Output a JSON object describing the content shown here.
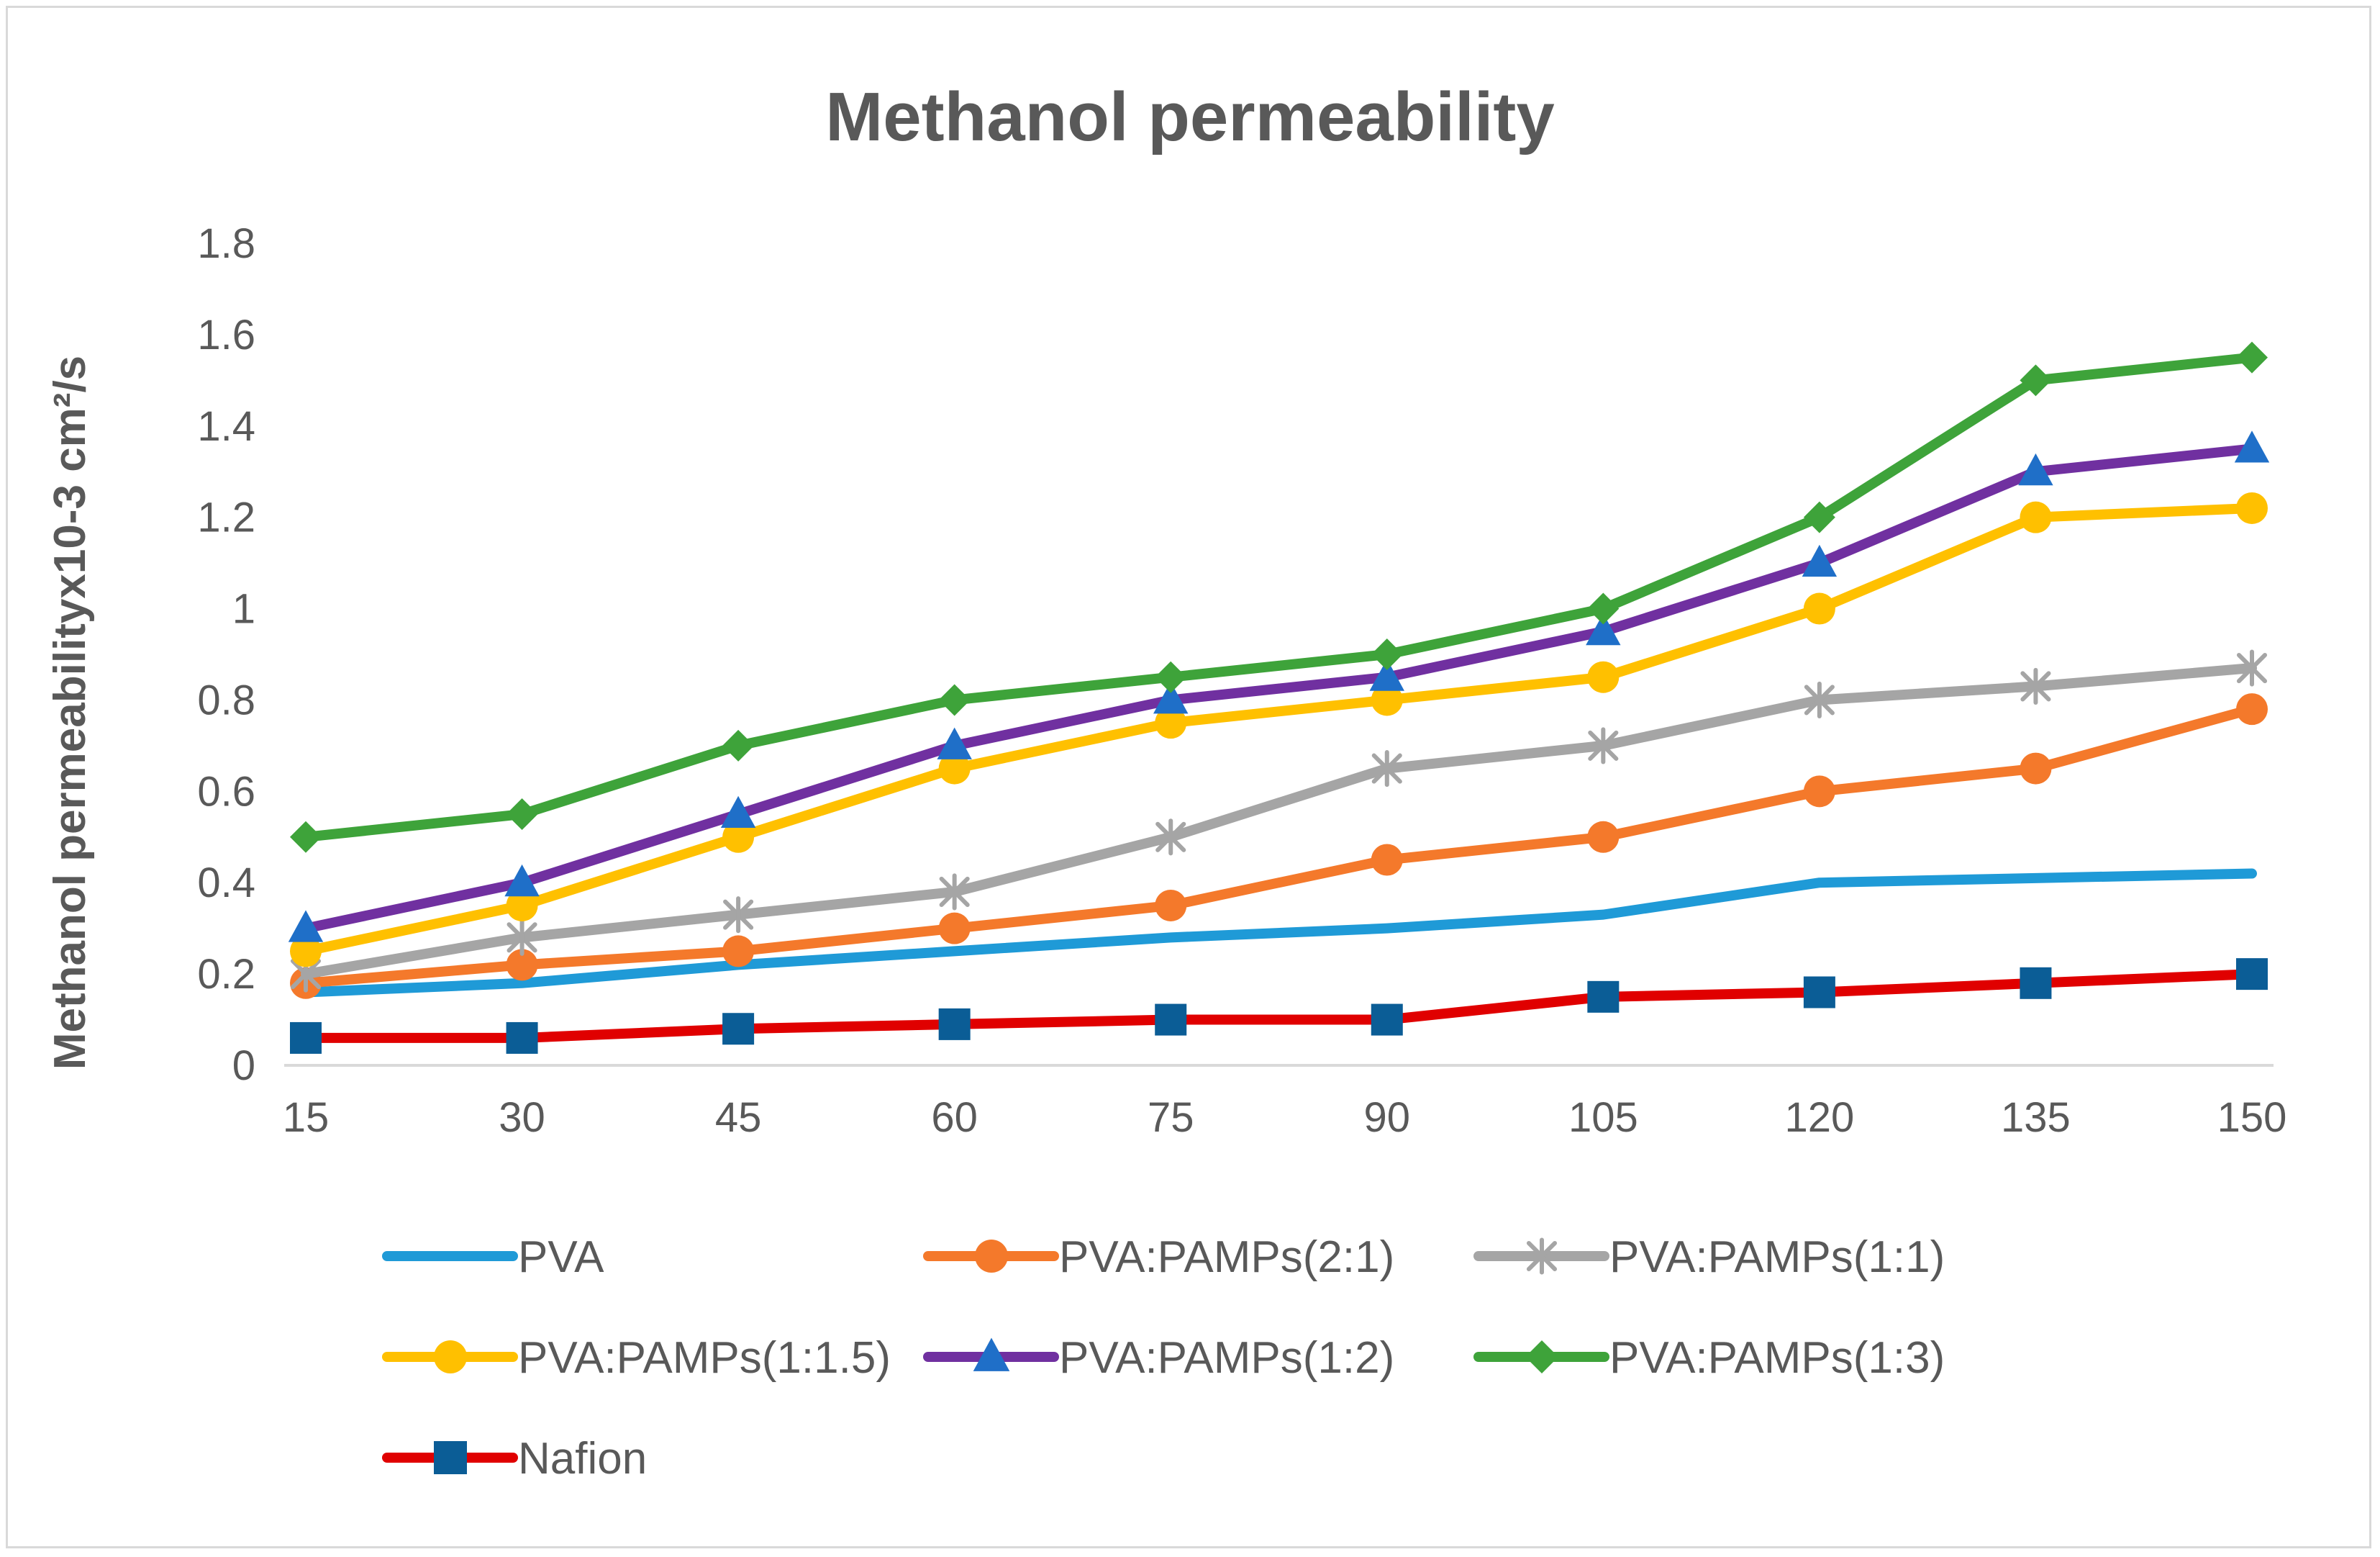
{
  "chart_data": {
    "type": "line",
    "title": "Methanol permeability",
    "xlabel": "",
    "ylabel": "Methanol permeabilityx10-3 cm²/s",
    "categories": [
      "15",
      "30",
      "45",
      "60",
      "75",
      "90",
      "105",
      "120",
      "135",
      "150"
    ],
    "y_tick_labels": [
      "0",
      "0.2",
      "0.4",
      "0.6",
      "0.8",
      "1",
      "1.2",
      "1.4",
      "1.6",
      "1.8"
    ],
    "ylim": [
      0,
      1.8
    ],
    "grid": false,
    "legend_position": "bottom",
    "series": [
      {
        "name": "PVA",
        "color": "#1f9ad7",
        "marker": "none",
        "values": [
          0.16,
          0.18,
          0.22,
          0.25,
          0.28,
          0.3,
          0.33,
          0.4,
          0.41,
          0.42
        ]
      },
      {
        "name": "PVA:PAMPs(2:1)",
        "color": "#f4792b",
        "marker": "circle",
        "values": [
          0.18,
          0.22,
          0.25,
          0.3,
          0.35,
          0.45,
          0.5,
          0.6,
          0.65,
          0.78
        ]
      },
      {
        "name": "PVA:PAMPs(1:1)",
        "color": "#a5a5a5",
        "marker": "star",
        "values": [
          0.2,
          0.28,
          0.33,
          0.38,
          0.5,
          0.65,
          0.7,
          0.8,
          0.83,
          0.87
        ]
      },
      {
        "name": "PVA:PAMPs(1:1.5)",
        "color": "#ffc000",
        "marker": "circle",
        "values": [
          0.25,
          0.35,
          0.5,
          0.65,
          0.75,
          0.8,
          0.85,
          1.0,
          1.2,
          1.22
        ]
      },
      {
        "name": "PVA:PAMPs(1:2)",
        "color": "#7030a0",
        "marker": "triangle",
        "marker_color": "#1f6fc8",
        "values": [
          0.3,
          0.4,
          0.55,
          0.7,
          0.8,
          0.85,
          0.95,
          1.1,
          1.3,
          1.35
        ]
      },
      {
        "name": "PVA:PAMPs(1:3)",
        "color": "#3ea33a",
        "marker": "diamond",
        "values": [
          0.5,
          0.55,
          0.7,
          0.8,
          0.85,
          0.9,
          1.0,
          1.2,
          1.5,
          1.55
        ]
      },
      {
        "name": "Nafion",
        "color": "#e00000",
        "marker": "square",
        "marker_color": "#0b5d96",
        "values": [
          0.06,
          0.06,
          0.08,
          0.09,
          0.1,
          0.1,
          0.15,
          0.16,
          0.18,
          0.2
        ]
      }
    ]
  }
}
